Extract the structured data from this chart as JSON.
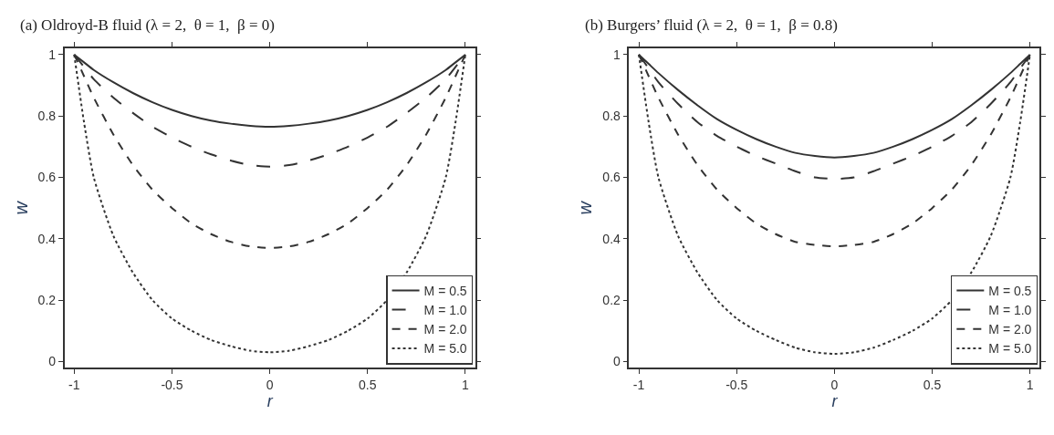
{
  "chart_data": [
    {
      "type": "line",
      "title": "(a) Oldroyd-B fluid (λ = 2,  θ = 1,  β = 0)",
      "xlabel": "r",
      "ylabel": "w",
      "x": [
        -1,
        -0.95,
        -0.9,
        -0.8,
        -0.7,
        -0.6,
        -0.5,
        -0.4,
        -0.3,
        -0.2,
        -0.1,
        0,
        0.1,
        0.2,
        0.3,
        0.4,
        0.5,
        0.6,
        0.7,
        0.8,
        0.9,
        0.95,
        1
      ],
      "series": [
        {
          "name": "M = 0.5",
          "color": "#333333",
          "line_style": "solid",
          "values": [
            1,
            0.975,
            0.95,
            0.91,
            0.875,
            0.845,
            0.82,
            0.8,
            0.785,
            0.775,
            0.768,
            0.765,
            0.768,
            0.775,
            0.785,
            0.8,
            0.82,
            0.845,
            0.875,
            0.91,
            0.95,
            0.975,
            1
          ]
        },
        {
          "name": "M = 1.0",
          "color": "#333333",
          "line_style": "dashed",
          "values": [
            1,
            0.96,
            0.92,
            0.86,
            0.81,
            0.765,
            0.73,
            0.7,
            0.675,
            0.655,
            0.64,
            0.635,
            0.64,
            0.655,
            0.675,
            0.7,
            0.73,
            0.765,
            0.81,
            0.86,
            0.92,
            0.96,
            1
          ]
        },
        {
          "name": "M = 2.0",
          "color": "#333333",
          "line_style": "dashed",
          "values": [
            1,
            0.93,
            0.86,
            0.74,
            0.64,
            0.56,
            0.5,
            0.45,
            0.415,
            0.39,
            0.375,
            0.37,
            0.375,
            0.39,
            0.415,
            0.45,
            0.5,
            0.56,
            0.64,
            0.74,
            0.86,
            0.93,
            1
          ]
        },
        {
          "name": "M = 5.0",
          "color": "#333333",
          "line_style": "dotted",
          "values": [
            1,
            0.78,
            0.6,
            0.41,
            0.29,
            0.2,
            0.14,
            0.1,
            0.07,
            0.05,
            0.035,
            0.03,
            0.035,
            0.05,
            0.07,
            0.1,
            0.14,
            0.2,
            0.29,
            0.41,
            0.6,
            0.78,
            1
          ]
        }
      ],
      "xlim": [
        -1.05,
        1.05
      ],
      "ylim": [
        -0.02,
        1.02
      ],
      "xticks": [
        -1,
        -0.5,
        0,
        0.5,
        1
      ],
      "yticks": [
        0,
        0.2,
        0.4,
        0.6,
        0.8,
        1
      ],
      "legend": "bottom right"
    },
    {
      "type": "line",
      "title": "(b) Burgers’ fluid (λ = 2,  θ = 1,  β = 0.8)",
      "xlabel": "r",
      "ylabel": "w",
      "x": [
        -1,
        -0.95,
        -0.9,
        -0.8,
        -0.7,
        -0.6,
        -0.5,
        -0.4,
        -0.3,
        -0.2,
        -0.1,
        0,
        0.1,
        0.2,
        0.3,
        0.4,
        0.5,
        0.6,
        0.7,
        0.8,
        0.9,
        0.95,
        1
      ],
      "series": [
        {
          "name": "M = 0.5",
          "color": "#333333",
          "line_style": "solid",
          "values": [
            1,
            0.97,
            0.94,
            0.885,
            0.835,
            0.79,
            0.755,
            0.725,
            0.7,
            0.68,
            0.67,
            0.665,
            0.67,
            0.68,
            0.7,
            0.725,
            0.755,
            0.79,
            0.835,
            0.885,
            0.94,
            0.97,
            1
          ]
        },
        {
          "name": "M = 1.0",
          "color": "#333333",
          "line_style": "dashed",
          "values": [
            1,
            0.955,
            0.91,
            0.84,
            0.78,
            0.735,
            0.7,
            0.67,
            0.645,
            0.62,
            0.6,
            0.595,
            0.6,
            0.62,
            0.645,
            0.67,
            0.7,
            0.735,
            0.78,
            0.84,
            0.91,
            0.955,
            1
          ]
        },
        {
          "name": "M = 2.0",
          "color": "#333333",
          "line_style": "dashed",
          "values": [
            1,
            0.93,
            0.86,
            0.74,
            0.64,
            0.56,
            0.5,
            0.45,
            0.415,
            0.39,
            0.38,
            0.375,
            0.38,
            0.39,
            0.415,
            0.45,
            0.5,
            0.56,
            0.64,
            0.74,
            0.86,
            0.93,
            1
          ]
        },
        {
          "name": "M = 5.0",
          "color": "#333333",
          "line_style": "dotted",
          "values": [
            1,
            0.78,
            0.6,
            0.41,
            0.29,
            0.2,
            0.14,
            0.1,
            0.07,
            0.045,
            0.03,
            0.025,
            0.03,
            0.045,
            0.07,
            0.1,
            0.14,
            0.2,
            0.29,
            0.41,
            0.6,
            0.78,
            1
          ]
        }
      ],
      "xlim": [
        -1.05,
        1.05
      ],
      "ylim": [
        -0.02,
        1.02
      ],
      "xticks": [
        -1,
        -0.5,
        0,
        0.5,
        1
      ],
      "yticks": [
        0,
        0.2,
        0.4,
        0.6,
        0.8,
        1
      ],
      "legend": "bottom right"
    }
  ]
}
